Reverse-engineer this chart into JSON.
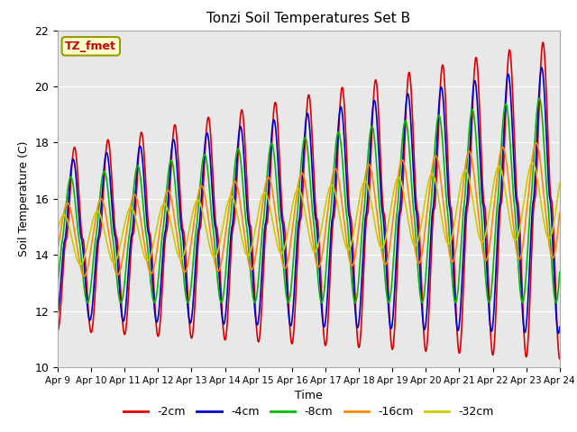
{
  "title": "Tonzi Soil Temperatures Set B",
  "xlabel": "Time",
  "ylabel": "Soil Temperature (C)",
  "annotation": "TZ_fmet",
  "ylim": [
    10,
    22
  ],
  "yticks": [
    10,
    12,
    14,
    16,
    18,
    20,
    22
  ],
  "xtick_labels": [
    "Apr 9",
    "Apr 10",
    "Apr 11",
    "Apr 12",
    "Apr 13",
    "Apr 14",
    "Apr 15",
    "Apr 16",
    "Apr 17",
    "Apr 18",
    "Apr 19",
    "Apr 20",
    "Apr 21",
    "Apr 22",
    "Apr 23",
    "Apr 24"
  ],
  "series_labels": [
    "-2cm",
    "-4cm",
    "-8cm",
    "-16cm",
    "-32cm"
  ],
  "series_colors": [
    "#dd0000",
    "#0000cc",
    "#00bb00",
    "#ff8800",
    "#cccc00"
  ],
  "line_width": 1.2,
  "plot_bg_color": "#e8e8e8",
  "annotation_facecolor": "#ffffcc",
  "annotation_edgecolor": "#999900",
  "days": 15,
  "pts_per_day": 96
}
